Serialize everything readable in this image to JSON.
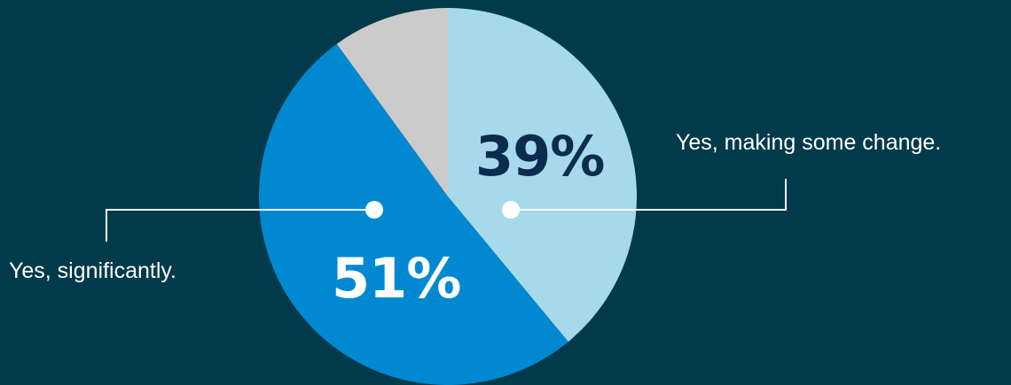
{
  "chart_data": {
    "type": "pie",
    "slices": [
      {
        "label": "Yes, making some change.",
        "percent_label": "39%",
        "value": 39,
        "color": "#a6d9e9",
        "text_color": "#0b2c4f"
      },
      {
        "label": "Yes, significantly.",
        "percent_label": "51%",
        "value": 51,
        "color": "#0089d0",
        "text_color": "#ffffff"
      },
      {
        "label": "",
        "percent_label": "",
        "value": 10,
        "color": "#cbcbcb",
        "text_color": "#ffffff"
      }
    ],
    "start_angle": "12 o'clock",
    "direction": "clockwise",
    "background": "#003a4b",
    "leader_line_color": "#ffffff"
  }
}
